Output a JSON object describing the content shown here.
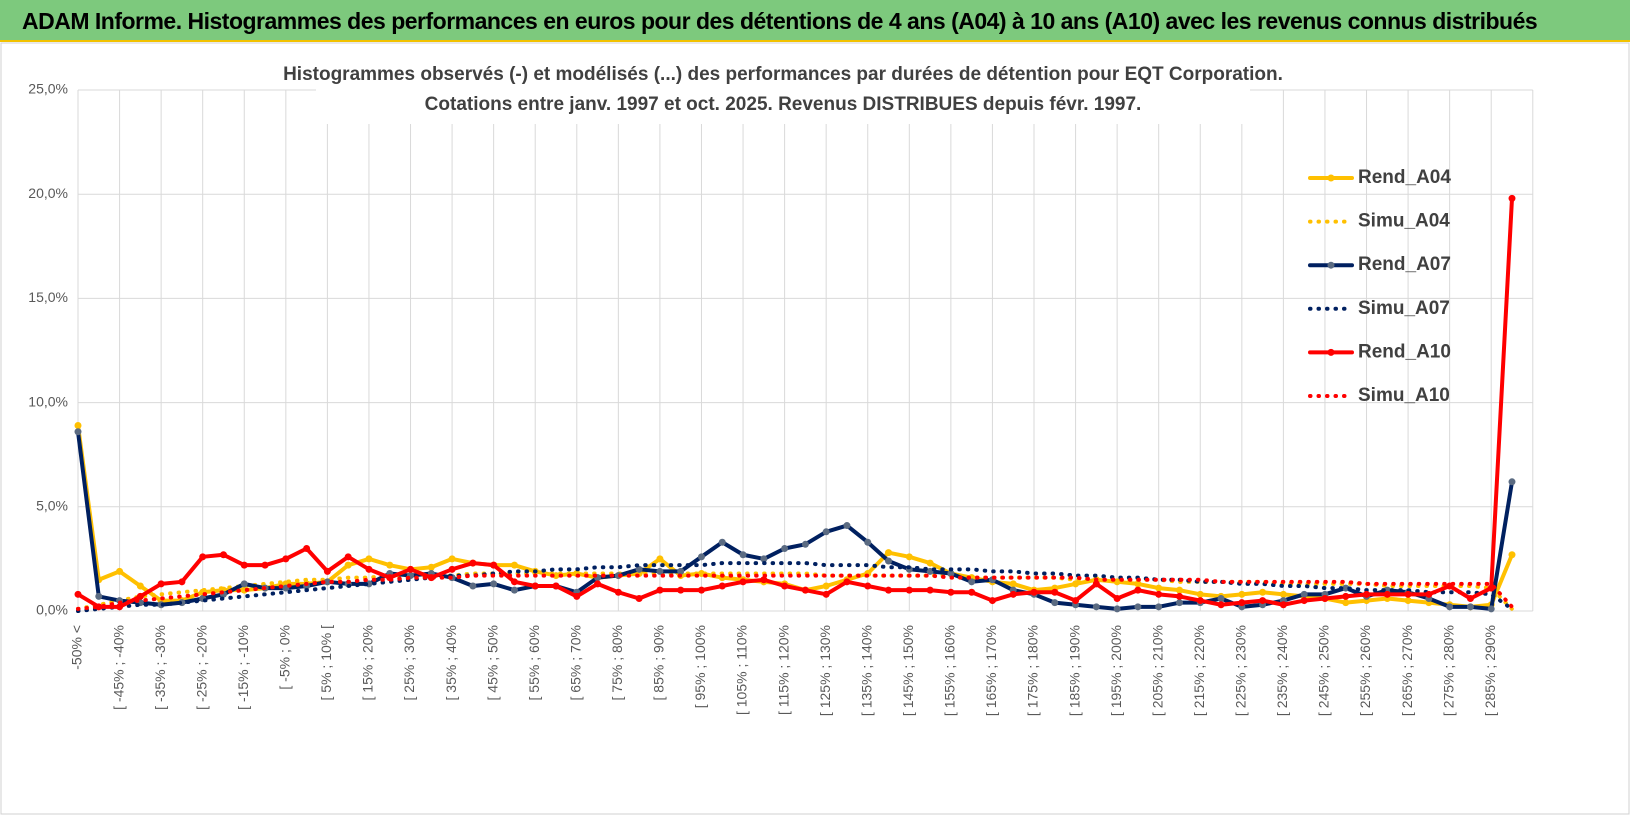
{
  "header": {
    "title": "ADAM Informe. Histogrammes des performances en euros pour des détentions de 4 ans (A04) à 10 ans (A10) avec les revenus connus distribués"
  },
  "chart_data": {
    "type": "line",
    "title": [
      "Histogrammes observés (-) et modélisés (...) des performances par durées de détention pour EQT Corporation.",
      "Cotations entre janv. 1997 et oct. 2025.  Revenus DISTRIBUES depuis févr. 1997."
    ],
    "categories": [
      "-50% <",
      null,
      "[ -45% ; -40%",
      null,
      "[ -35% ; -30%",
      null,
      "[ -25% ; -20%",
      null,
      "[ -15% ; -10%",
      null,
      "[ -5% ; 0%",
      null,
      "[ 5% ; 10% [",
      null,
      "[ 15% ; 20%",
      null,
      "[ 25% ; 30%",
      null,
      "[ 35% ; 40%",
      null,
      "[ 45% ; 50%",
      null,
      "[ 55% ; 60%",
      null,
      "[ 65% ; 70%",
      null,
      "[ 75% ; 80%",
      null,
      "[ 85% ; 90%",
      null,
      "[ 95% ; 100%",
      null,
      "[ 105% ; 110%",
      null,
      "[ 115% ; 120%",
      null,
      "[ 125% ; 130%",
      null,
      "[ 135% ; 140%",
      null,
      "[ 145% ; 150%",
      null,
      "[ 155% ; 160%",
      null,
      "[ 165% ; 170%",
      null,
      "[ 175% ; 180%",
      null,
      "[ 185% ; 190%",
      null,
      "[ 195% ; 200%",
      null,
      "[ 205% ; 210%",
      null,
      "[ 215% ; 220%",
      null,
      "[ 225% ; 230%",
      null,
      "[ 235% ; 240%",
      null,
      "[ 245% ; 250%",
      null,
      "[ 255% ; 260%",
      null,
      "[ 265% ; 270%",
      null,
      "[ 275% ; 280%",
      null,
      "[ 285% ; 290%",
      null
    ],
    "series": [
      {
        "name": "Rend_A04",
        "color": "#ffc000",
        "style": "solid",
        "marker": true,
        "values": [
          8.9,
          1.5,
          1.9,
          1.2,
          0.5,
          0.5,
          0.9,
          1.0,
          1.0,
          1.1,
          1.3,
          1.3,
          1.4,
          2.2,
          2.5,
          2.2,
          2.0,
          2.1,
          2.5,
          2.3,
          2.2,
          2.2,
          1.9,
          1.7,
          1.8,
          1.6,
          1.7,
          1.8,
          2.5,
          1.7,
          1.8,
          1.6,
          1.5,
          1.4,
          1.3,
          1.0,
          1.2,
          1.5,
          1.8,
          2.8,
          2.6,
          2.3,
          1.8,
          1.6,
          1.4,
          1.3,
          1.0,
          1.1,
          1.3,
          1.5,
          1.4,
          1.3,
          1.1,
          1.0,
          0.8,
          0.7,
          0.8,
          0.9,
          0.8,
          0.7,
          0.6,
          0.4,
          0.5,
          0.6,
          0.5,
          0.4,
          0.3,
          0.2,
          0.3,
          2.7
        ]
      },
      {
        "name": "Simu_A04",
        "color": "#ffc000",
        "style": "dotted",
        "marker": false,
        "values": [
          0.1,
          0.3,
          0.5,
          0.7,
          0.8,
          0.9,
          1.0,
          1.1,
          1.2,
          1.3,
          1.4,
          1.5,
          1.5,
          1.6,
          1.6,
          1.7,
          1.7,
          1.7,
          1.7,
          1.8,
          1.8,
          1.8,
          1.8,
          1.8,
          1.8,
          1.8,
          1.8,
          1.8,
          1.8,
          1.8,
          1.8,
          1.8,
          1.8,
          1.8,
          1.8,
          1.8,
          1.7,
          1.7,
          1.7,
          1.7,
          1.7,
          1.7,
          1.7,
          1.6,
          1.6,
          1.6,
          1.6,
          1.6,
          1.5,
          1.5,
          1.5,
          1.5,
          1.5,
          1.4,
          1.4,
          1.4,
          1.4,
          1.4,
          1.3,
          1.3,
          1.3,
          1.3,
          1.3,
          1.2,
          1.2,
          1.2,
          1.2,
          1.2,
          1.1,
          0.1
        ]
      },
      {
        "name": "Rend_A07",
        "color": "#002060",
        "marker_color": "#5b6b82",
        "style": "solid",
        "marker": true,
        "values": [
          8.6,
          0.7,
          0.5,
          0.4,
          0.3,
          0.4,
          0.6,
          0.8,
          1.3,
          1.1,
          1.1,
          1.2,
          1.4,
          1.3,
          1.3,
          1.8,
          1.7,
          1.8,
          1.6,
          1.2,
          1.3,
          1.0,
          1.2,
          1.2,
          0.9,
          1.6,
          1.7,
          2.0,
          1.9,
          1.9,
          2.6,
          3.3,
          2.7,
          2.5,
          3.0,
          3.2,
          3.8,
          4.1,
          3.3,
          2.4,
          2.0,
          1.9,
          1.8,
          1.4,
          1.5,
          1.0,
          0.8,
          0.4,
          0.3,
          0.2,
          0.1,
          0.2,
          0.2,
          0.4,
          0.4,
          0.6,
          0.2,
          0.3,
          0.5,
          0.8,
          0.8,
          1.1,
          0.7,
          1.0,
          0.9,
          0.6,
          0.2,
          0.2,
          0.1,
          6.2
        ]
      },
      {
        "name": "Simu_A07",
        "color": "#002060",
        "style": "dotted",
        "marker": false,
        "values": [
          0,
          0.1,
          0.2,
          0.3,
          0.3,
          0.4,
          0.5,
          0.6,
          0.7,
          0.8,
          0.9,
          1.0,
          1.1,
          1.2,
          1.3,
          1.4,
          1.5,
          1.6,
          1.7,
          1.7,
          1.8,
          1.9,
          1.9,
          2.0,
          2.0,
          2.1,
          2.1,
          2.2,
          2.2,
          2.2,
          2.2,
          2.3,
          2.3,
          2.3,
          2.3,
          2.3,
          2.2,
          2.2,
          2.2,
          2.1,
          2.1,
          2.0,
          2.0,
          2.0,
          1.9,
          1.9,
          1.8,
          1.8,
          1.7,
          1.7,
          1.6,
          1.6,
          1.5,
          1.5,
          1.4,
          1.4,
          1.3,
          1.3,
          1.2,
          1.2,
          1.1,
          1.1,
          1.0,
          1.0,
          1.0,
          0.9,
          0.9,
          0.9,
          0.8,
          0.1
        ]
      },
      {
        "name": "Rend_A10",
        "color": "#ff0000",
        "style": "solid",
        "marker": true,
        "values": [
          0.8,
          0.2,
          0.2,
          0.7,
          1.3,
          1.4,
          2.6,
          2.7,
          2.2,
          2.2,
          2.5,
          3.0,
          1.9,
          2.6,
          2.0,
          1.6,
          2.0,
          1.6,
          2.0,
          2.3,
          2.2,
          1.4,
          1.2,
          1.2,
          0.7,
          1.3,
          0.9,
          0.6,
          1.0,
          1.0,
          1.0,
          1.2,
          1.4,
          1.5,
          1.2,
          1.0,
          0.8,
          1.4,
          1.2,
          1.0,
          1.0,
          1.0,
          0.9,
          0.9,
          0.5,
          0.8,
          0.9,
          0.9,
          0.5,
          1.3,
          0.6,
          1.0,
          0.8,
          0.7,
          0.5,
          0.3,
          0.4,
          0.5,
          0.3,
          0.5,
          0.6,
          0.7,
          0.8,
          0.8,
          0.8,
          0.8,
          1.2,
          0.6,
          1.1,
          19.8
        ]
      },
      {
        "name": "Simu_A10",
        "color": "#ff0000",
        "style": "dotted",
        "marker": false,
        "values": [
          0.1,
          0.2,
          0.4,
          0.5,
          0.6,
          0.7,
          0.8,
          0.9,
          1.0,
          1.1,
          1.2,
          1.3,
          1.4,
          1.4,
          1.5,
          1.5,
          1.6,
          1.6,
          1.6,
          1.7,
          1.7,
          1.7,
          1.7,
          1.7,
          1.7,
          1.7,
          1.7,
          1.7,
          1.7,
          1.7,
          1.7,
          1.7,
          1.7,
          1.7,
          1.7,
          1.7,
          1.7,
          1.7,
          1.7,
          1.7,
          1.7,
          1.7,
          1.6,
          1.6,
          1.6,
          1.6,
          1.6,
          1.6,
          1.6,
          1.5,
          1.5,
          1.5,
          1.5,
          1.5,
          1.5,
          1.4,
          1.4,
          1.4,
          1.4,
          1.4,
          1.4,
          1.4,
          1.3,
          1.3,
          1.3,
          1.3,
          1.3,
          1.3,
          1.3,
          0.2
        ]
      }
    ],
    "ylim": [
      0,
      25
    ],
    "yticks": [
      {
        "value": 0,
        "label": "0,0%"
      },
      {
        "value": 5,
        "label": "5,0%"
      },
      {
        "value": 10,
        "label": "10,0%"
      },
      {
        "value": 15,
        "label": "15,0%"
      },
      {
        "value": 20,
        "label": "20,0%"
      },
      {
        "value": 25,
        "label": "25,0%"
      }
    ],
    "grid": true,
    "legend": "right"
  }
}
